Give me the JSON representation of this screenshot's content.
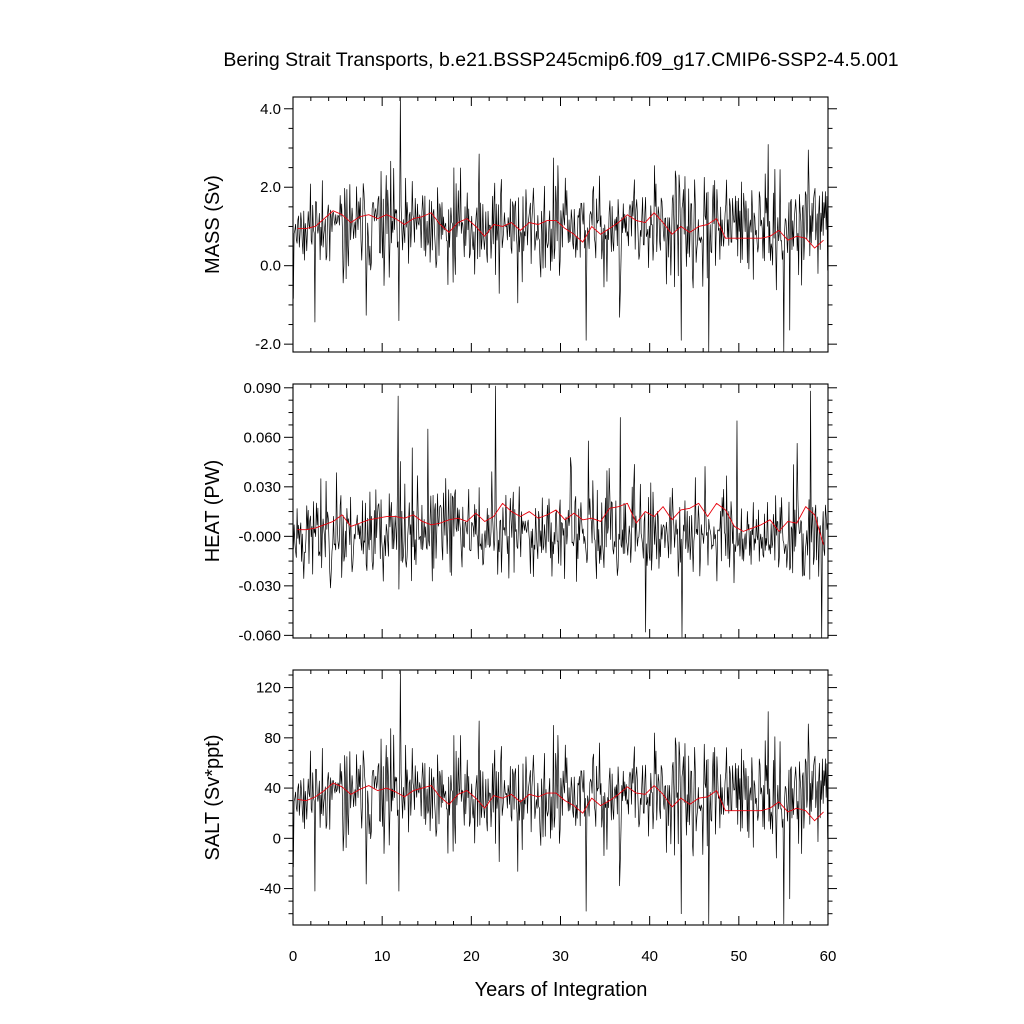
{
  "title": "Bering Strait Transports, b.e21.BSSP245cmip6.f09_g17.CMIP6-SSP2-4.5.001",
  "xlabel": "Years of Integration",
  "x_ticks": [
    "0",
    "10",
    "20",
    "30",
    "40",
    "50",
    "60"
  ],
  "colors": {
    "monthly": "#000000",
    "annual": "#e8000b",
    "axis": "#000000"
  },
  "chart_data": [
    {
      "type": "line",
      "id": "mass",
      "ylabel": "MASS (Sv)",
      "xlim": [
        0,
        60
      ],
      "ylim": [
        -2.2,
        4.3
      ],
      "yticks": [
        "4.0",
        "2.0",
        "0.0",
        "-2.0"
      ],
      "ytick_values": [
        4.0,
        2.0,
        0.0,
        -2.0
      ],
      "series": [
        {
          "kind": "monthly",
          "seed": 11,
          "base": 1.0,
          "noise": 0.55,
          "down_prob": 0.12,
          "down_scale": 1.6,
          "up_prob": 0.08,
          "up_scale": 0.9,
          "spikes": [
            [
              12.0,
              4.3
            ],
            [
              11.9,
              -1.4
            ],
            [
              32.9,
              -1.9
            ],
            [
              55.0,
              -2.2
            ],
            [
              43.5,
              -1.9
            ],
            [
              46.6,
              -2.2
            ],
            [
              57.8,
              2.95
            ],
            [
              54.6,
              2.45
            ],
            [
              29.7,
              2.55
            ],
            [
              10.5,
              2.3
            ]
          ]
        },
        {
          "kind": "annual",
          "x": [
            0.5,
            1.5,
            2.5,
            3.5,
            4.5,
            5.5,
            6.5,
            7.5,
            8.5,
            9.5,
            10.5,
            11.5,
            12.5,
            13.5,
            14.5,
            15.5,
            16.5,
            17.5,
            18.5,
            19.5,
            20.5,
            21.5,
            22.5,
            23.5,
            24.5,
            25.5,
            26.5,
            27.5,
            28.5,
            29.5,
            30.5,
            31.5,
            32.5,
            33.5,
            34.5,
            35.5,
            36.5,
            37.5,
            38.5,
            39.5,
            40.5,
            41.5,
            42.5,
            43.5,
            44.5,
            45.5,
            46.5,
            47.5,
            48.5,
            49.5,
            50.5,
            51.5,
            52.5,
            53.5,
            54.5,
            55.5,
            56.5,
            57.5,
            58.5,
            59.5
          ],
          "y": [
            0.95,
            0.95,
            1.0,
            1.2,
            1.4,
            1.3,
            1.1,
            1.25,
            1.3,
            1.2,
            1.3,
            1.2,
            1.05,
            1.2,
            1.25,
            1.35,
            1.05,
            0.85,
            1.1,
            1.2,
            1.0,
            0.75,
            1.05,
            1.0,
            1.1,
            0.9,
            1.1,
            1.05,
            1.15,
            1.15,
            0.95,
            0.8,
            0.6,
            1.0,
            0.8,
            0.95,
            1.1,
            1.3,
            1.15,
            1.1,
            1.35,
            1.1,
            0.8,
            1.0,
            0.85,
            1.0,
            1.05,
            1.2,
            0.7,
            0.7,
            0.7,
            0.7,
            0.7,
            0.75,
            0.9,
            0.65,
            0.75,
            0.7,
            0.45,
            0.65
          ]
        }
      ]
    },
    {
      "type": "line",
      "id": "heat",
      "ylabel": "HEAT (PW)",
      "xlim": [
        0,
        60
      ],
      "ylim": [
        -0.0616,
        0.0923
      ],
      "yticks": [
        "0.090",
        "0.060",
        "0.030",
        "-0.000",
        "-0.030",
        "-0.060"
      ],
      "ytick_values": [
        0.09,
        0.06,
        0.03,
        0.0,
        -0.03,
        -0.06
      ],
      "series": [
        {
          "kind": "monthly",
          "seed": 23,
          "base": 0.0,
          "noise": 0.012,
          "down_prob": 0.05,
          "down_scale": 0.01,
          "up_prob": 0.2,
          "up_scale": 0.035,
          "spikes": [
            [
              22.7,
              0.091
            ],
            [
              11.8,
              0.085
            ],
            [
              58.0,
              0.088
            ],
            [
              39.5,
              -0.058
            ],
            [
              43.6,
              -0.061
            ],
            [
              59.3,
              -0.064
            ],
            [
              11.9,
              -0.032
            ],
            [
              15.1,
              0.065
            ],
            [
              36.7,
              0.072
            ],
            [
              49.8,
              0.07
            ]
          ]
        },
        {
          "kind": "annual",
          "x": [
            0.5,
            1.5,
            2.5,
            3.5,
            4.5,
            5.5,
            6.5,
            7.5,
            8.5,
            9.5,
            10.5,
            11.5,
            12.5,
            13.5,
            14.5,
            15.5,
            16.5,
            17.5,
            18.5,
            19.5,
            20.5,
            21.5,
            22.5,
            23.5,
            24.5,
            25.5,
            26.5,
            27.5,
            28.5,
            29.5,
            30.5,
            31.5,
            32.5,
            33.5,
            34.5,
            35.5,
            36.5,
            37.5,
            38.5,
            39.5,
            40.5,
            41.5,
            42.5,
            43.5,
            44.5,
            45.5,
            46.5,
            47.5,
            48.5,
            49.5,
            50.5,
            51.5,
            52.5,
            53.5,
            54.5,
            55.5,
            56.5,
            57.5,
            58.5,
            59.5
          ],
          "y": [
            0.004,
            0.004,
            0.005,
            0.007,
            0.009,
            0.013,
            0.006,
            0.008,
            0.01,
            0.011,
            0.012,
            0.012,
            0.011,
            0.013,
            0.009,
            0.007,
            0.008,
            0.01,
            0.011,
            0.009,
            0.014,
            0.009,
            0.012,
            0.02,
            0.015,
            0.012,
            0.015,
            0.011,
            0.013,
            0.016,
            0.01,
            0.014,
            0.01,
            0.011,
            0.009,
            0.017,
            0.018,
            0.02,
            0.008,
            0.015,
            0.012,
            0.018,
            0.01,
            0.016,
            0.017,
            0.02,
            0.012,
            0.02,
            0.016,
            0.006,
            0.003,
            0.005,
            0.007,
            0.01,
            0.003,
            0.009,
            0.008,
            0.018,
            0.013,
            -0.005
          ]
        }
      ]
    },
    {
      "type": "line",
      "id": "salt",
      "ylabel": "SALT (Sv*ppt)",
      "xlim": [
        0,
        60
      ],
      "ylim": [
        -69,
        134
      ],
      "yticks": [
        "120",
        "80",
        "40",
        "0",
        "-40"
      ],
      "ytick_values": [
        120,
        80,
        40,
        0,
        -40
      ],
      "series": [
        {
          "kind": "monthly",
          "seed": 11,
          "base": 35,
          "noise": 17.5,
          "down_prob": 0.12,
          "down_scale": 50,
          "up_prob": 0.08,
          "up_scale": 28,
          "spikes": [
            [
              12.0,
              133
            ],
            [
              11.9,
              -42
            ],
            [
              32.9,
              -58
            ],
            [
              55.0,
              -68
            ],
            [
              43.5,
              -60
            ],
            [
              46.6,
              -68
            ],
            [
              57.8,
              91
            ],
            [
              54.6,
              77
            ],
            [
              29.7,
              82
            ],
            [
              10.5,
              74
            ]
          ]
        },
        {
          "kind": "annual",
          "x": [
            0.5,
            1.5,
            2.5,
            3.5,
            4.5,
            5.5,
            6.5,
            7.5,
            8.5,
            9.5,
            10.5,
            11.5,
            12.5,
            13.5,
            14.5,
            15.5,
            16.5,
            17.5,
            18.5,
            19.5,
            20.5,
            21.5,
            22.5,
            23.5,
            24.5,
            25.5,
            26.5,
            27.5,
            28.5,
            29.5,
            30.5,
            31.5,
            32.5,
            33.5,
            34.5,
            35.5,
            36.5,
            37.5,
            38.5,
            39.5,
            40.5,
            41.5,
            42.5,
            43.5,
            44.5,
            45.5,
            46.5,
            47.5,
            48.5,
            49.5,
            50.5,
            51.5,
            52.5,
            53.5,
            54.5,
            55.5,
            56.5,
            57.5,
            58.5,
            59.5
          ],
          "y": [
            31,
            30,
            33,
            38,
            44,
            41,
            35,
            39,
            42,
            38,
            40,
            37,
            33,
            38,
            40,
            42,
            33,
            27,
            35,
            38,
            32,
            24,
            34,
            32,
            35,
            29,
            35,
            33,
            36,
            36,
            30,
            26,
            20,
            32,
            26,
            30,
            35,
            41,
            36,
            35,
            42,
            35,
            25,
            32,
            27,
            32,
            33,
            38,
            22,
            22,
            22,
            22,
            22,
            24,
            29,
            21,
            24,
            22,
            14,
            21
          ]
        }
      ]
    }
  ]
}
